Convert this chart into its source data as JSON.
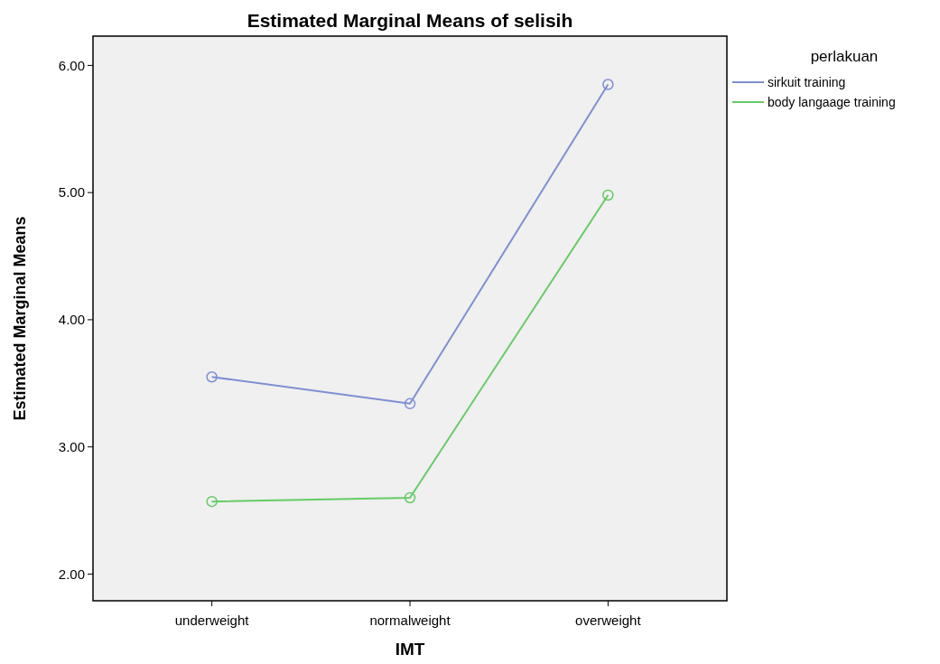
{
  "chart_data": {
    "type": "line",
    "title": "Estimated Marginal Means of selisih",
    "xlabel": "IMT",
    "ylabel": "Estimated Marginal Means",
    "legend_title": "perlakuan",
    "categories": [
      "underweight",
      "normalweight",
      "overweight"
    ],
    "series": [
      {
        "name": "sirkuit training",
        "color": "#7f8fd3",
        "values": [
          3.55,
          3.34,
          5.85
        ]
      },
      {
        "name": "body langaage training",
        "color": "#66cc66",
        "values": [
          2.57,
          2.6,
          4.98
        ]
      }
    ],
    "ylim": [
      1.79,
      6.23
    ],
    "yticks": [
      {
        "value": 2,
        "label": "2.00"
      },
      {
        "value": 3,
        "label": "3.00"
      },
      {
        "value": 4,
        "label": "4.00"
      },
      {
        "value": 5,
        "label": "5.00"
      },
      {
        "value": 6,
        "label": "6.00"
      }
    ],
    "grid": false,
    "legend": "top right",
    "marker": "circle",
    "line_style": "solid"
  }
}
